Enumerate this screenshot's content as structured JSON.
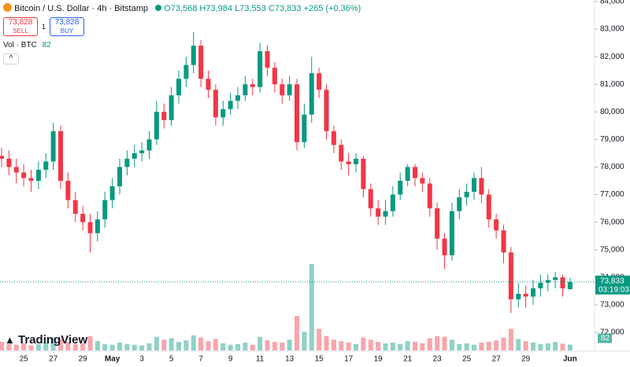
{
  "header": {
    "title": "Bitcoin / U.S. Dollar · 4h · Bitstamp",
    "open_label": "O73,568",
    "high_label": "H73,984",
    "low_label": "L73,553",
    "close_label": "C73,833",
    "change_label": "+265 (+0.36%)",
    "sell_price": "73,828",
    "sell": "SELL",
    "spread": "1",
    "buy_price": "73,828",
    "buy": "BUY",
    "volume_title": "Vol · BTC",
    "logo": "TradingView"
  },
  "chart_data": {
    "type": "candlestick",
    "categories": [
      null,
      null,
      null,
      "25",
      null,
      null,
      null,
      "27",
      null,
      null,
      null,
      "29",
      null,
      null,
      null,
      "May",
      null,
      null,
      null,
      "3",
      null,
      null,
      null,
      "5",
      null,
      null,
      null,
      "7",
      null,
      null,
      null,
      "9",
      null,
      null,
      null,
      "11",
      null,
      null,
      null,
      "13",
      null,
      null,
      null,
      "15",
      null,
      null,
      null,
      "17",
      null,
      null,
      null,
      "19",
      null,
      null,
      null,
      "21",
      null,
      null,
      null,
      "23",
      null,
      null,
      null,
      "25",
      null,
      null,
      null,
      "27",
      null,
      null,
      null,
      "29",
      null,
      null,
      null,
      null,
      null,
      "Jun"
    ],
    "open": [
      78400,
      78300,
      78000,
      77800,
      77600,
      77500,
      77900,
      78200,
      79300,
      77500,
      76800,
      76300,
      76000,
      75600,
      76100,
      76800,
      77300,
      78000,
      78300,
      78500,
      78600,
      79000,
      80000,
      79700,
      80600,
      81200,
      81700,
      82400,
      81200,
      80800,
      79800,
      80100,
      80400,
      80600,
      81000,
      80900,
      82200,
      81600,
      81000,
      80600,
      81000,
      78900,
      79900,
      81400,
      80800,
      79300,
      78800,
      78200,
      78100,
      78300,
      77200,
      76500,
      76200,
      76400,
      77000,
      77500,
      78000,
      77600,
      77400,
      76500,
      75400,
      74800,
      76400,
      76900,
      77100,
      77600,
      77000,
      76100,
      75700,
      74900,
      73200,
      73400,
      73300,
      73600,
      73800,
      73900,
      74000,
      73568
    ],
    "high": [
      78700,
      78600,
      78300,
      78100,
      77900,
      78200,
      78500,
      79600,
      79500,
      77800,
      77100,
      76600,
      76300,
      76400,
      77100,
      77600,
      78300,
      78600,
      78800,
      78900,
      79300,
      80400,
      80300,
      80900,
      81500,
      82000,
      82900,
      82600,
      81500,
      81000,
      80400,
      80700,
      80900,
      81300,
      81200,
      82500,
      82400,
      81800,
      81200,
      81300,
      81200,
      80300,
      82000,
      81600,
      81000,
      79500,
      79000,
      78500,
      78500,
      78400,
      77400,
      76800,
      76800,
      77300,
      77800,
      78100,
      78100,
      77800,
      77600,
      76700,
      75600,
      76700,
      77200,
      77400,
      77800,
      78000,
      77200,
      76300,
      75900,
      75100,
      73800,
      73700,
      73900,
      74100,
      74100,
      74200,
      74100,
      73984
    ],
    "low": [
      78000,
      77700,
      77400,
      77300,
      77100,
      77200,
      77600,
      77900,
      77200,
      76500,
      76000,
      75700,
      74900,
      75300,
      75800,
      76500,
      77000,
      77700,
      78000,
      78200,
      78300,
      78800,
      79400,
      79500,
      80300,
      80900,
      81400,
      80900,
      80500,
      79500,
      79500,
      79900,
      80100,
      80400,
      80600,
      80700,
      81300,
      80700,
      80300,
      80400,
      78600,
      78700,
      79600,
      80500,
      79000,
      78500,
      77900,
      77700,
      77800,
      76900,
      76200,
      75900,
      75900,
      76200,
      76800,
      77300,
      77300,
      77100,
      76200,
      75000,
      74300,
      74600,
      76100,
      76600,
      76800,
      76700,
      75800,
      75400,
      74500,
      72700,
      72900,
      72900,
      73000,
      73300,
      73500,
      73600,
      73300,
      73553
    ],
    "close": [
      78300,
      78000,
      77800,
      77600,
      77500,
      77900,
      78200,
      79300,
      77500,
      76800,
      76300,
      76000,
      75600,
      76100,
      76800,
      77300,
      78000,
      78300,
      78500,
      78600,
      79000,
      80000,
      79700,
      80600,
      81200,
      81700,
      82400,
      81200,
      80800,
      79800,
      80100,
      80400,
      80600,
      81000,
      80900,
      82200,
      81600,
      81000,
      80600,
      81000,
      78900,
      79900,
      81400,
      80800,
      79300,
      78800,
      78200,
      78100,
      78300,
      77200,
      76500,
      76200,
      76400,
      77000,
      77500,
      78000,
      77600,
      77400,
      76500,
      75400,
      74800,
      76400,
      76900,
      77100,
      77600,
      77000,
      76100,
      75700,
      74900,
      73200,
      73400,
      73300,
      73600,
      73800,
      73900,
      74000,
      73600,
      73833
    ],
    "volume": [
      120,
      90,
      80,
      100,
      70,
      90,
      110,
      180,
      160,
      120,
      90,
      100,
      200,
      130,
      90,
      80,
      110,
      90,
      80,
      70,
      100,
      190,
      150,
      170,
      120,
      140,
      210,
      180,
      130,
      160,
      100,
      80,
      90,
      110,
      80,
      190,
      140,
      120,
      110,
      150,
      480,
      260,
      1200,
      300,
      200,
      150,
      130,
      110,
      90,
      180,
      150,
      120,
      100,
      110,
      90,
      130,
      120,
      100,
      170,
      200,
      190,
      150,
      90,
      100,
      80,
      110,
      120,
      140,
      180,
      300,
      160,
      130,
      110,
      90,
      100,
      120,
      95,
      82
    ],
    "last_price_label": "73,833",
    "countdown": "03:19:03",
    "up_color": "#089981",
    "down_color": "#f23645",
    "ylim": [
      72000,
      84000
    ],
    "yticks": [
      {
        "value": 72000,
        "label": "72,000"
      },
      {
        "value": 73000,
        "label": "73,000"
      },
      {
        "value": 74000,
        "label": "74,000"
      },
      {
        "value": 75000,
        "label": "75,000"
      },
      {
        "value": 76000,
        "label": "76,000"
      },
      {
        "value": 77000,
        "label": "77,000"
      },
      {
        "value": 78000,
        "label": "78,000"
      },
      {
        "value": 79000,
        "label": "79,000"
      },
      {
        "value": 80000,
        "label": "80,000"
      },
      {
        "value": 81000,
        "label": "81,000"
      },
      {
        "value": 82000,
        "label": "82,000"
      },
      {
        "value": 83000,
        "label": "83,000"
      },
      {
        "value": 84000,
        "label": "84,000"
      }
    ],
    "grid": false
  }
}
